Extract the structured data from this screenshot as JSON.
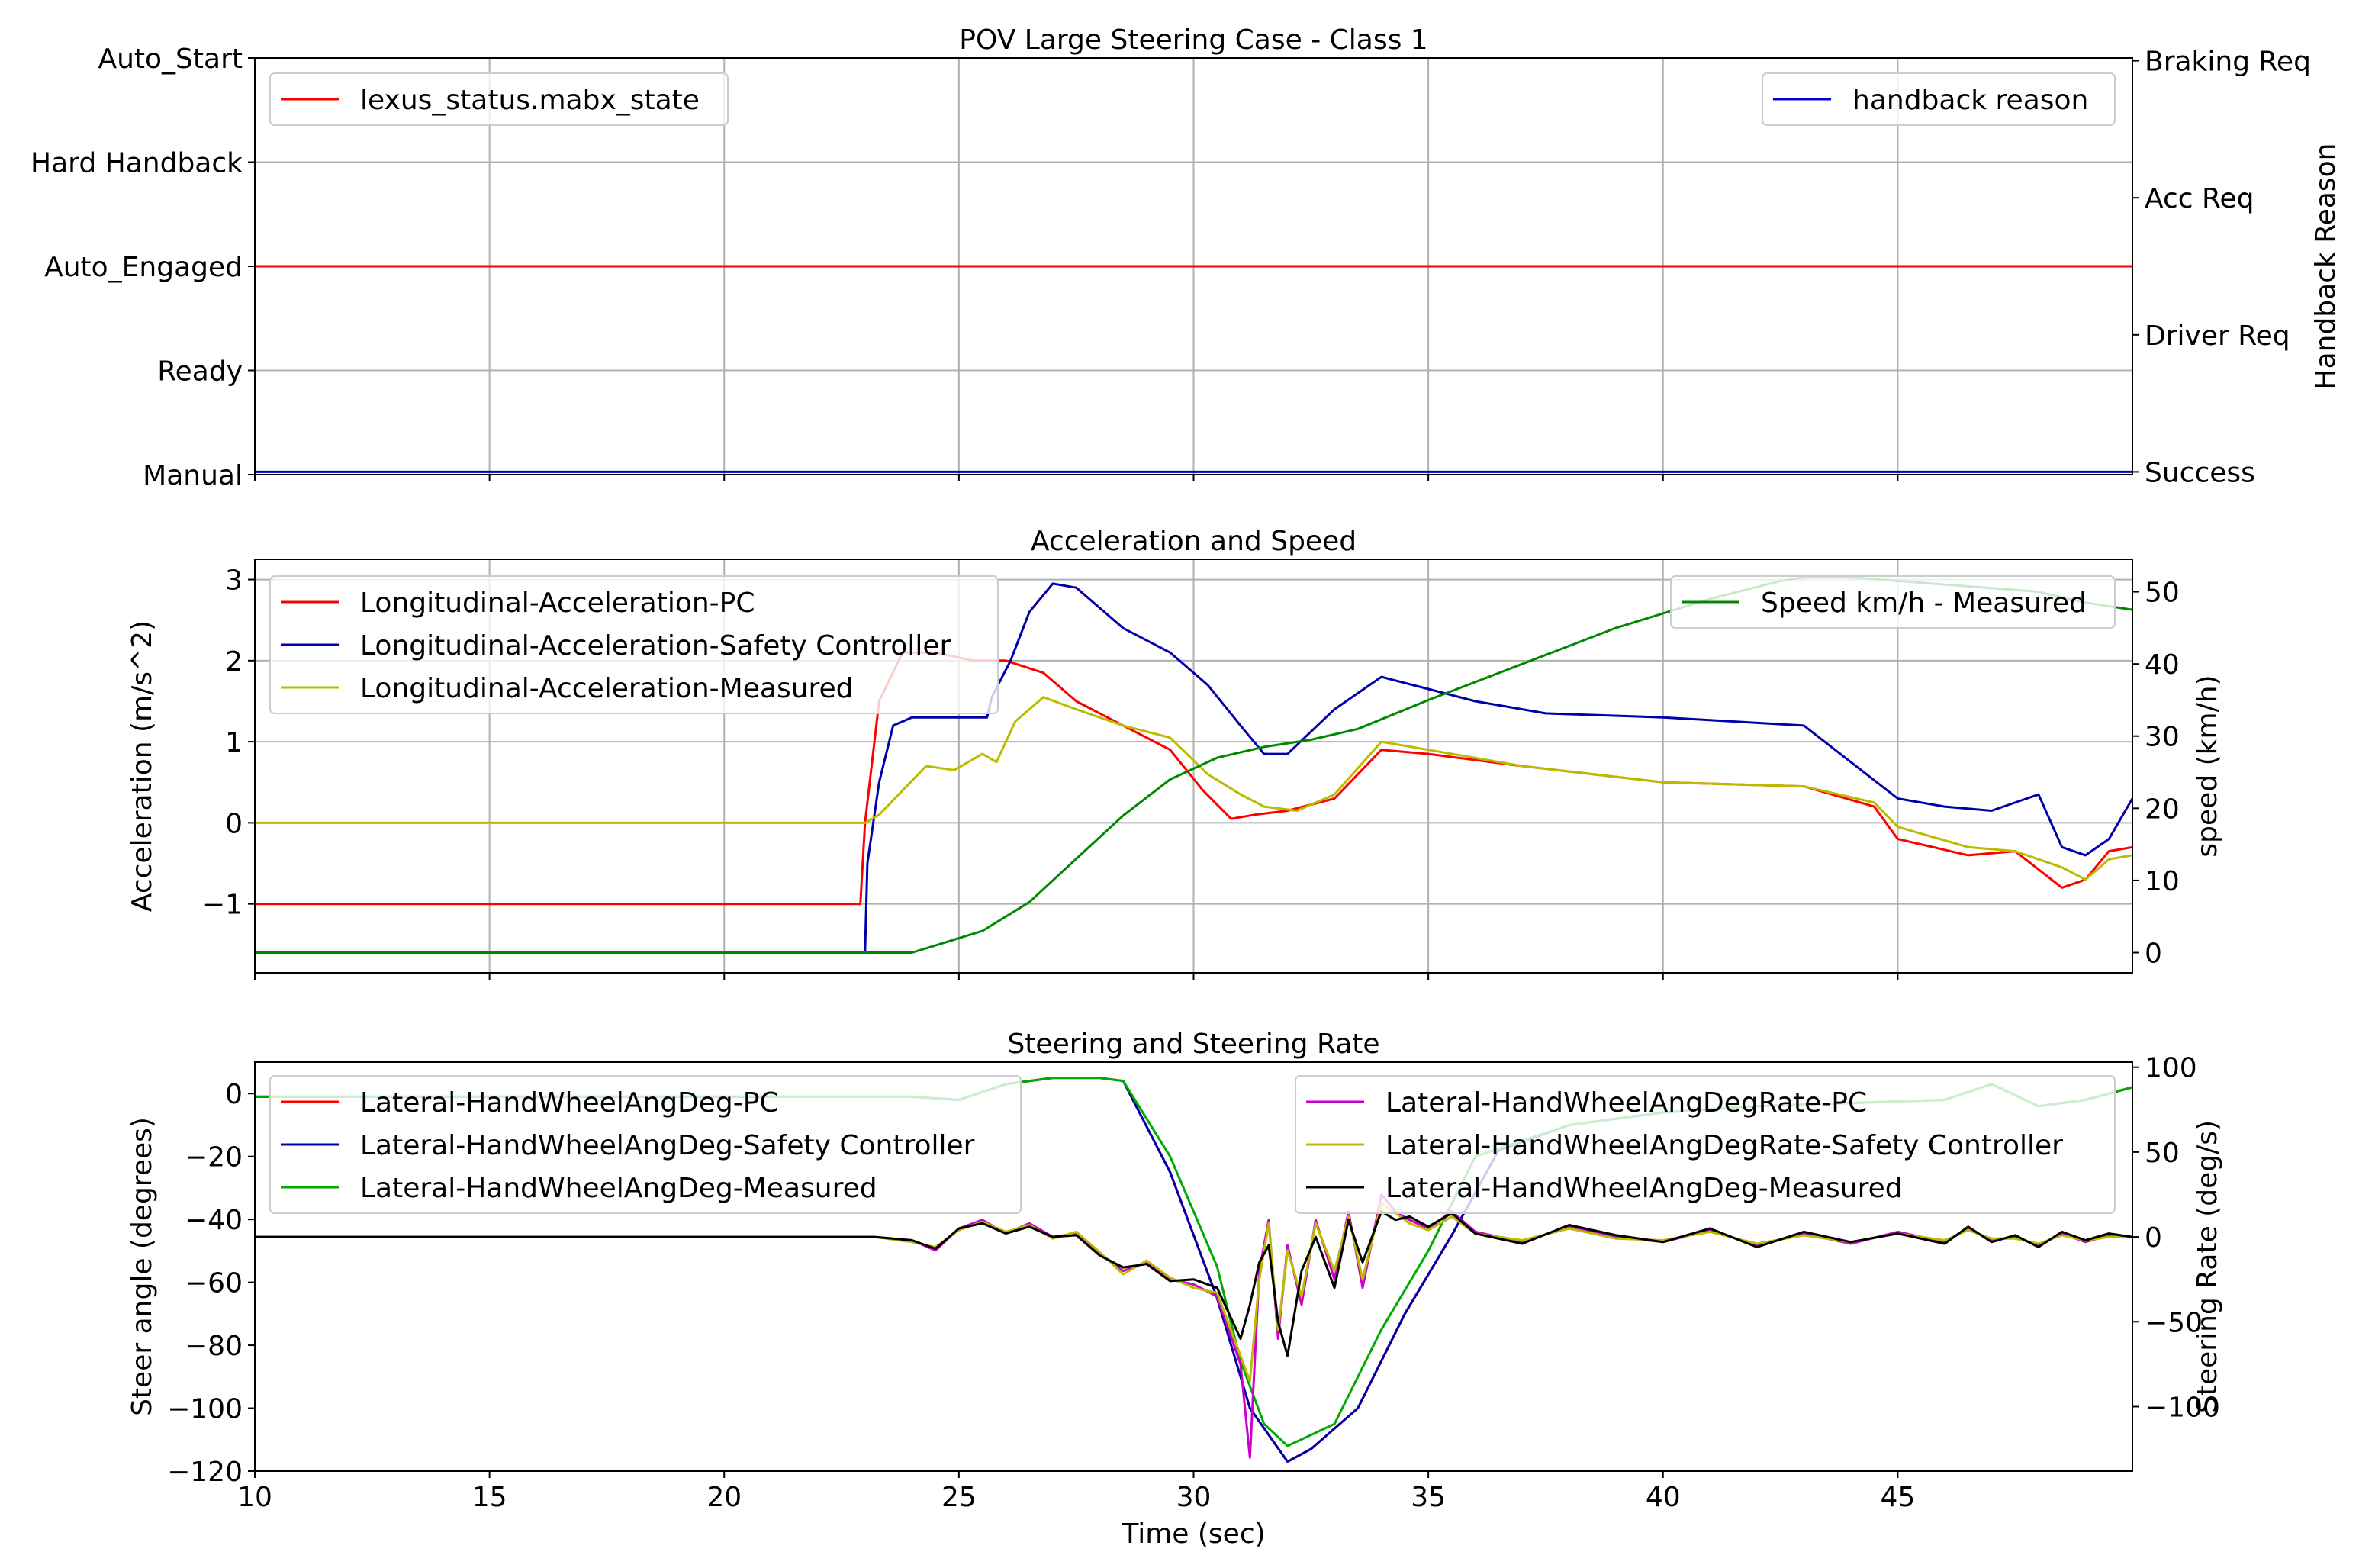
{
  "chart_data": [
    {
      "type": "line",
      "title": "POV Large Steering Case - Class 1",
      "xlim": [
        10,
        50
      ],
      "x_ticks": [
        10,
        15,
        20,
        25,
        30,
        35,
        40,
        45
      ],
      "x_tick_labels_shown": false,
      "grid": true,
      "left_axis": {
        "label": "",
        "ylim": [
          0,
          4
        ],
        "ticks": [
          0,
          1,
          2,
          3,
          4
        ],
        "tick_labels": [
          "Manual",
          "Ready",
          "Auto_Engaged",
          "Hard Handback",
          "Auto_Start"
        ]
      },
      "right_axis": {
        "label": "Handback Reason",
        "ylim": [
          -0.02,
          3.02
        ],
        "ticks": [
          0,
          1,
          2,
          3
        ],
        "tick_labels": [
          "Success",
          "Driver Req",
          "Acc Req",
          "Braking Req"
        ]
      },
      "series": [
        {
          "name": "lexus_status.mabx_state",
          "color": "#ff0000",
          "axis": "left",
          "legend": "left",
          "x": [
            10,
            50
          ],
          "y": [
            2,
            2
          ]
        },
        {
          "name": "handback reason",
          "color": "#0000cc",
          "axis": "right",
          "legend": "right",
          "x": [
            10,
            50
          ],
          "y": [
            0,
            0
          ]
        }
      ]
    },
    {
      "type": "line",
      "title": "Acceleration and Speed",
      "xlim": [
        10,
        50
      ],
      "x_ticks": [
        10,
        15,
        20,
        25,
        30,
        35,
        40,
        45
      ],
      "x_tick_labels_shown": false,
      "grid": true,
      "left_axis": {
        "label": "Acceleration (m/s^2)",
        "ylim": [
          -1.85,
          3.25
        ],
        "ticks": [
          -1,
          0,
          1,
          2,
          3
        ],
        "tick_labels": [
          "−1",
          "0",
          "1",
          "2",
          "3"
        ]
      },
      "right_axis": {
        "label": "speed (km/h)",
        "ylim": [
          -2.8,
          54.5
        ],
        "ticks": [
          0,
          10,
          20,
          30,
          40,
          50
        ],
        "tick_labels": [
          "0",
          "10",
          "20",
          "30",
          "40",
          "50"
        ]
      },
      "series": [
        {
          "name": "Longitudinal-Acceleration-PC",
          "color": "#ff0000",
          "axis": "left",
          "legend": "left",
          "x": [
            10,
            22.9,
            23.0,
            23.3,
            23.8,
            24.5,
            25.3,
            26.0,
            26.8,
            27.5,
            28.5,
            29.5,
            30.2,
            30.8,
            31.3,
            32.0,
            33.0,
            34.0,
            35.0,
            37.0,
            40.0,
            43.0,
            44.5,
            45.0,
            46.5,
            47.5,
            48.5,
            49.0,
            49.5,
            50.0
          ],
          "y": [
            -1,
            -1,
            0,
            1.5,
            2.1,
            2.1,
            2.0,
            2.0,
            1.85,
            1.5,
            1.2,
            0.9,
            0.4,
            0.05,
            0.1,
            0.15,
            0.3,
            0.9,
            0.85,
            0.7,
            0.5,
            0.45,
            0.2,
            -0.2,
            -0.4,
            -0.35,
            -0.8,
            -0.7,
            -0.35,
            -0.3
          ]
        },
        {
          "name": "Longitudinal-Acceleration-Safety Controller",
          "color": "#0000aa",
          "axis": "left",
          "legend": "left",
          "x": [
            10,
            23.0,
            23.05,
            23.3,
            23.6,
            24.0,
            24.8,
            25.6,
            25.7,
            26.1,
            26.5,
            27.0,
            27.5,
            28.5,
            29.5,
            30.3,
            31.0,
            31.5,
            32.0,
            33.0,
            34.0,
            35.0,
            36.0,
            37.5,
            40.0,
            43.0,
            44.0,
            45.0,
            46.0,
            47.0,
            48.0,
            48.5,
            49.0,
            49.5,
            50.0
          ],
          "y": [
            -1.6,
            -1.6,
            -0.5,
            0.5,
            1.2,
            1.3,
            1.3,
            1.3,
            1.55,
            2.0,
            2.6,
            2.95,
            2.9,
            2.4,
            2.1,
            1.7,
            1.2,
            0.85,
            0.85,
            1.4,
            1.8,
            1.65,
            1.5,
            1.35,
            1.3,
            1.2,
            0.75,
            0.3,
            0.2,
            0.15,
            0.35,
            -0.3,
            -0.4,
            -0.2,
            0.3
          ]
        },
        {
          "name": "Longitudinal-Acceleration-Measured",
          "color": "#bbbb00",
          "axis": "left",
          "legend": "left",
          "x": [
            10,
            23.0,
            23.3,
            23.8,
            24.3,
            24.9,
            25.5,
            25.8,
            26.2,
            26.8,
            27.5,
            28.5,
            29.5,
            30.3,
            31.0,
            31.5,
            32.2,
            33.0,
            34.0,
            35.0,
            37.0,
            40.0,
            43.0,
            44.5,
            45.0,
            46.5,
            47.5,
            48.5,
            49.0,
            49.5,
            50.0
          ],
          "y": [
            0,
            0,
            0.1,
            0.4,
            0.7,
            0.65,
            0.85,
            0.75,
            1.25,
            1.55,
            1.4,
            1.2,
            1.05,
            0.6,
            0.35,
            0.2,
            0.15,
            0.35,
            1.0,
            0.9,
            0.7,
            0.5,
            0.45,
            0.25,
            -0.05,
            -0.3,
            -0.35,
            -0.55,
            -0.7,
            -0.45,
            -0.4
          ]
        },
        {
          "name": "Speed km/h - Measured",
          "color": "#008800",
          "axis": "right",
          "legend": "right",
          "x": [
            10,
            24.0,
            24.5,
            25.5,
            26.5,
            27.5,
            28.5,
            29.5,
            30.5,
            31.5,
            32.5,
            33.5,
            35.0,
            37.0,
            39.0,
            41.0,
            42.5,
            43.0,
            44.0,
            45.0,
            46.0,
            47.0,
            48.0,
            49.0,
            50.0
          ],
          "y": [
            0,
            0,
            1,
            3,
            7,
            13,
            19,
            24,
            27,
            28.5,
            29.5,
            31,
            35,
            40,
            45,
            49,
            51.5,
            52,
            52,
            51.5,
            51,
            50.5,
            50,
            48.5,
            47.5
          ]
        }
      ]
    },
    {
      "type": "line",
      "title": "Steering and Steering Rate",
      "xlim": [
        10,
        50
      ],
      "x_ticks": [
        10,
        15,
        20,
        25,
        30,
        35,
        40,
        45
      ],
      "x_tick_labels": [
        "10",
        "15",
        "20",
        "25",
        "30",
        "35",
        "40",
        "45"
      ],
      "xlabel": "Time (sec)",
      "grid": false,
      "left_axis": {
        "label": "Steer angle (degrees)",
        "ylim": [
          -120,
          10
        ],
        "ticks": [
          0,
          -20,
          -40,
          -60,
          -80,
          -100,
          -120
        ],
        "tick_labels": [
          "0",
          "−20",
          "−40",
          "−60",
          "−80",
          "−100",
          "−120"
        ]
      },
      "right_axis": {
        "label": "Steering Rate (deg/s)",
        "ylim": [
          -138,
          103
        ],
        "ticks": [
          100,
          50,
          0,
          -50,
          -100
        ],
        "tick_labels": [
          "100",
          "50",
          "0",
          "−50",
          "−100"
        ]
      },
      "series": [
        {
          "name": "Lateral-HandWheelAngDeg-PC",
          "color": "#ff0000",
          "axis": "left",
          "legend": "left",
          "x": [
            10,
            24,
            25,
            26,
            27,
            28,
            28.5,
            29.5,
            30.5,
            31.2,
            32.0,
            32.5,
            33.5,
            34.5,
            35.5,
            36.5,
            38,
            40,
            42,
            44,
            46,
            47,
            48,
            49,
            50
          ],
          "y": [
            -1,
            -1,
            -2,
            3,
            5,
            5,
            4,
            -25,
            -65,
            -100,
            -117,
            -113,
            -100,
            -70,
            -45,
            -18,
            -10,
            -6,
            -4,
            -3,
            -2,
            3,
            -4,
            -2,
            2
          ]
        },
        {
          "name": "Lateral-HandWheelAngDeg-Safety Controller",
          "color": "#0000aa",
          "axis": "left",
          "legend": "left",
          "x": [
            10,
            24,
            25,
            26,
            27,
            28,
            28.5,
            29.5,
            30.5,
            31.2,
            32.0,
            32.5,
            33.5,
            34.5,
            35.5,
            36.5,
            38,
            40,
            42,
            44,
            46,
            47,
            48,
            49,
            50
          ],
          "y": [
            -1,
            -1,
            -2,
            3,
            5,
            5,
            4,
            -25,
            -65,
            -100,
            -117,
            -113,
            -100,
            -70,
            -45,
            -18,
            -10,
            -6,
            -4,
            -3,
            -2,
            3,
            -4,
            -2,
            2
          ]
        },
        {
          "name": "Lateral-HandWheelAngDeg-Measured",
          "color": "#00aa00",
          "axis": "left",
          "legend": "left",
          "x": [
            10,
            24,
            25,
            26,
            27,
            28,
            28.5,
            29.5,
            30.5,
            31.0,
            31.5,
            32.0,
            33.0,
            34.0,
            35.0,
            36.0,
            38,
            40,
            42,
            44,
            46,
            47,
            48,
            49,
            50
          ],
          "y": [
            -1,
            -1,
            -2,
            3,
            5,
            5,
            4,
            -20,
            -55,
            -85,
            -105,
            -112,
            -105,
            -75,
            -50,
            -20,
            -10,
            -6,
            -4,
            -3,
            -2,
            3,
            -4,
            -2,
            2
          ]
        },
        {
          "name": "Lateral-HandWheelAngDegRate-PC",
          "color": "#cc00cc",
          "axis": "right",
          "legend": "right",
          "x": [
            10,
            23.2,
            24.0,
            24.5,
            25.0,
            25.5,
            26.0,
            26.5,
            27.0,
            27.5,
            28.0,
            28.5,
            29.0,
            29.5,
            30.0,
            30.5,
            31.0,
            31.2,
            31.4,
            31.6,
            31.8,
            32.0,
            32.3,
            32.6,
            33.0,
            33.3,
            33.6,
            34.0,
            34.3,
            34.6,
            35.0,
            35.5,
            36.0,
            37.0,
            38.0,
            39.0,
            40.0,
            41.0,
            42.0,
            43.0,
            44.0,
            45.0,
            46.0,
            46.5,
            47.0,
            47.5,
            48.0,
            48.5,
            49.0,
            49.5,
            50.0
          ],
          "y": [
            0,
            0,
            -2,
            -8,
            5,
            10,
            2,
            8,
            0,
            2,
            -10,
            -20,
            -15,
            -25,
            -28,
            -35,
            -75,
            -130,
            -20,
            10,
            -60,
            -5,
            -40,
            10,
            -25,
            15,
            -30,
            25,
            15,
            10,
            5,
            15,
            3,
            -3,
            6,
            0,
            -3,
            4,
            -5,
            2,
            -4,
            3,
            -3,
            5,
            -2,
            0,
            -5,
            2,
            -3,
            1,
            0
          ]
        },
        {
          "name": "Lateral-HandWheelAngDegRate-Safety Controller",
          "color": "#bbbb00",
          "axis": "right",
          "legend": "right",
          "x": [
            10,
            23.2,
            24.0,
            24.5,
            25.0,
            25.5,
            26.0,
            26.5,
            27.0,
            27.5,
            28.0,
            28.5,
            29.0,
            29.5,
            30.0,
            30.5,
            31.0,
            31.2,
            31.4,
            31.6,
            31.8,
            32.0,
            32.3,
            32.6,
            33.0,
            33.3,
            33.6,
            34.0,
            34.3,
            34.6,
            35.0,
            35.5,
            36.0,
            37.0,
            38.0,
            39.0,
            40.0,
            41.0,
            42.0,
            43.0,
            44.0,
            45.0,
            46.0,
            46.5,
            47.0,
            47.5,
            48.0,
            48.5,
            49.0,
            49.5,
            50.0
          ],
          "y": [
            0,
            0,
            -3,
            -6,
            4,
            9,
            3,
            7,
            -1,
            3,
            -9,
            -22,
            -14,
            -24,
            -30,
            -33,
            -70,
            -85,
            -25,
            8,
            -55,
            -8,
            -35,
            8,
            -20,
            12,
            -25,
            20,
            14,
            8,
            4,
            12,
            2,
            -2,
            5,
            -1,
            -2,
            3,
            -4,
            1,
            -3,
            2,
            -2,
            4,
            -1,
            -1,
            -4,
            1,
            -2,
            0,
            0
          ]
        },
        {
          "name": "Lateral-HandWheelAngDeg-Measured",
          "color": "#000000",
          "axis": "right",
          "legend": "right",
          "x": [
            10,
            23.2,
            24.0,
            24.5,
            25.0,
            25.5,
            26.0,
            26.5,
            27.0,
            27.5,
            28.0,
            28.5,
            29.0,
            29.5,
            30.0,
            30.5,
            31.0,
            31.2,
            31.4,
            31.6,
            31.8,
            32.0,
            32.3,
            32.6,
            33.0,
            33.3,
            33.6,
            34.0,
            34.3,
            34.6,
            35.0,
            35.5,
            36.0,
            37.0,
            38.0,
            39.0,
            40.0,
            41.0,
            42.0,
            43.0,
            44.0,
            45.0,
            46.0,
            46.5,
            47.0,
            47.5,
            48.0,
            48.5,
            49.0,
            49.5,
            50.0
          ],
          "y": [
            0,
            0,
            -2,
            -7,
            5,
            8,
            2,
            6,
            0,
            1,
            -11,
            -18,
            -16,
            -26,
            -25,
            -30,
            -60,
            -40,
            -15,
            -5,
            -50,
            -70,
            -20,
            0,
            -30,
            10,
            -15,
            15,
            10,
            12,
            6,
            14,
            2,
            -4,
            7,
            1,
            -3,
            5,
            -6,
            3,
            -3,
            2,
            -4,
            6,
            -3,
            1,
            -6,
            3,
            -2,
            2,
            0
          ]
        }
      ]
    }
  ]
}
